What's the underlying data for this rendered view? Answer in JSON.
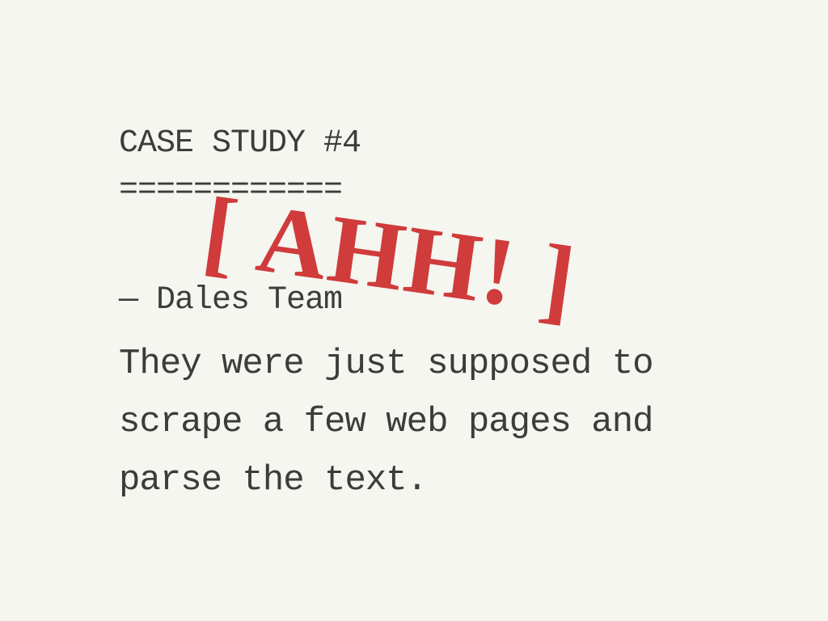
{
  "slide": {
    "title": "CASE STUDY #4",
    "title_underline": "============",
    "author": "— Dales Team",
    "body": "They were just supposed to scrape a few web pages and parse the text.",
    "stamp": "[ AHH! ]"
  },
  "colors": {
    "background": "#f4f6ef",
    "text": "#3c3c3c",
    "stamp": "#d03b3c"
  }
}
